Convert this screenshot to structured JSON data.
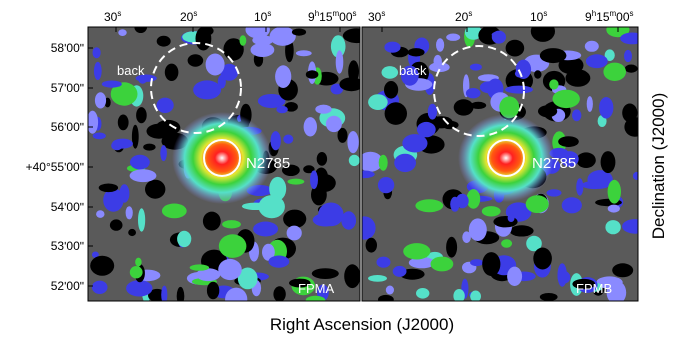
{
  "top_ra_ticks": [
    {
      "main": "30",
      "sup": "s",
      "prefix": ""
    },
    {
      "main": "20",
      "sup": "s",
      "prefix": ""
    },
    {
      "main": "10",
      "sup": "s",
      "prefix": ""
    },
    {
      "main": "00",
      "sup": "s",
      "prefix": "9h15m"
    }
  ],
  "dec_ticks": [
    {
      "text": "58ʹ00ʺ"
    },
    {
      "text": "57ʹ00ʺ"
    },
    {
      "text": "56ʹ00ʺ"
    },
    {
      "text": "+40°55ʹ00ʺ"
    },
    {
      "text": "54ʹ00ʺ"
    },
    {
      "text": "53ʹ00ʺ"
    },
    {
      "text": "52ʹ00ʺ"
    }
  ],
  "x_axis_label": "Right Ascension (J2000)",
  "y_axis_label": "Declination (J2000)",
  "panels": [
    {
      "name": "FPMA",
      "source_label": "N2785",
      "background_label": "back"
    },
    {
      "name": "FPMB",
      "source_label": "N2785",
      "background_label": "back"
    }
  ],
  "colors": {
    "background_noise": "#5a5a5a",
    "low": "#000000",
    "mid_blue": "#3c3ce6",
    "light_blue": "#8a8aff",
    "cyan": "#55e0c8",
    "green": "#3cd23c",
    "yellow": "#e6e632",
    "red": "#ff2020",
    "white": "#ffffff"
  }
}
